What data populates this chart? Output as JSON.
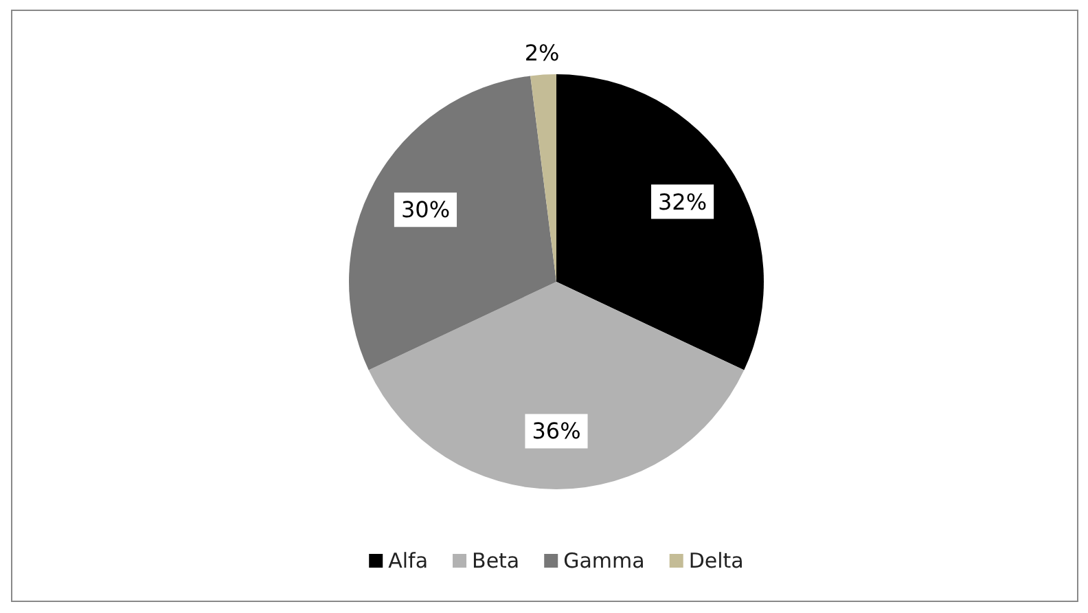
{
  "chart_data": {
    "type": "pie",
    "categories": [
      "Alfa",
      "Beta",
      "Gamma",
      "Delta"
    ],
    "values": [
      32,
      36,
      30,
      2
    ],
    "colors": [
      "#000000",
      "#b2b2b2",
      "#777777",
      "#c4bc96"
    ],
    "value_labels": [
      "32%",
      "36%",
      "30%",
      "2%"
    ],
    "legend": "bottom"
  }
}
